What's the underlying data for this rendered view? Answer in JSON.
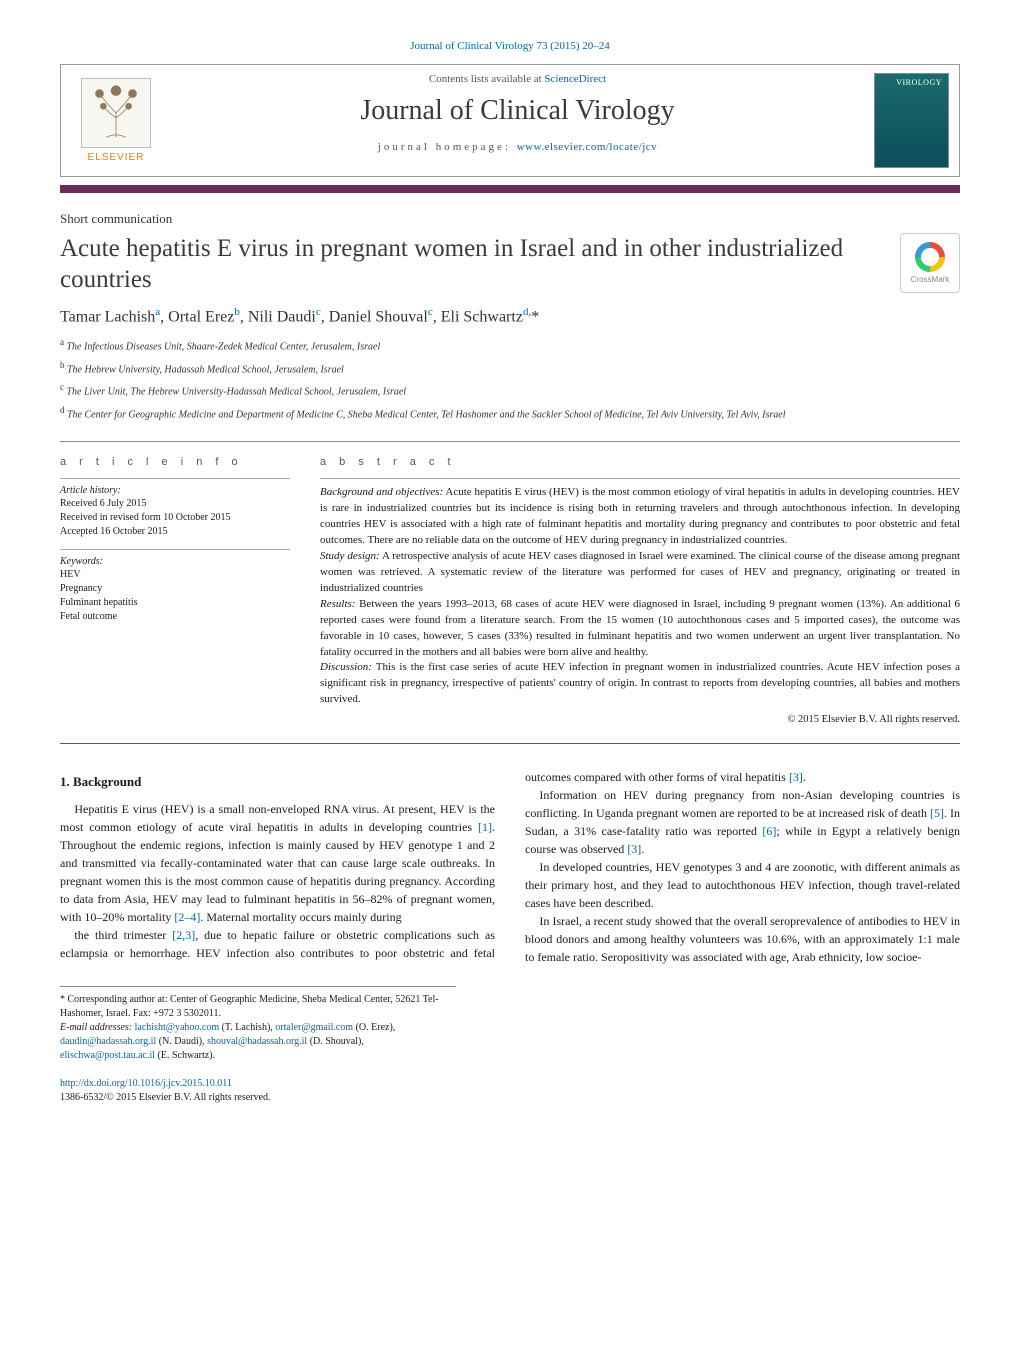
{
  "header": {
    "citation": "Journal of Clinical Virology 73 (2015) 20–24",
    "contents_prefix": "Contents lists available at ",
    "contents_link": "ScienceDirect",
    "journal_title": "Journal of Clinical Virology",
    "homepage_prefix": "journal homepage: ",
    "homepage_link": "www.elsevier.com/locate/jcv",
    "elsevier_label": "ELSEVIER",
    "cover_label": "VIROLOGY",
    "crossmark_label": "CrossMark",
    "colors": {
      "link": "#0066a8",
      "rule": "#6b2d5c",
      "elsevier_orange": "#e87e04",
      "cover_bg_top": "#1a6b6b",
      "cover_bg_bottom": "#0d4d5c"
    }
  },
  "article": {
    "type": "Short communication",
    "title": "Acute hepatitis E virus in pregnant women in Israel and in other industrialized countries",
    "authors_html": "Tamar Lachish<sup>a</sup>, Ortal Erez<sup>b</sup>, Nili Daudi<sup>c</sup>, Daniel Shouval<sup>c</sup>, Eli Schwartz<sup>d,</sup>*",
    "affiliations": [
      "a The Infectious Diseases Unit, Shaare-Zedek Medical Center, Jerusalem, Israel",
      "b The Hebrew University, Hadassah Medical School, Jerusalem, Israel",
      "c The Liver Unit, The Hebrew University-Hadassah Medical School, Jerusalem, Israel",
      "d The Center for Geographic Medicine and Department of Medicine C, Sheba Medical Center, Tel Hashomer and the Sackler School of Medicine, Tel Aviv University, Tel Aviv, Israel"
    ]
  },
  "info": {
    "header": "a r t i c l e   i n f o",
    "history_label": "Article history:",
    "history": [
      "Received 6 July 2015",
      "Received in revised form 10 October 2015",
      "Accepted 16 October 2015"
    ],
    "keywords_label": "Keywords:",
    "keywords": [
      "HEV",
      "Pregnancy",
      "Fulminant hepatitis",
      "Fetal outcome"
    ]
  },
  "abstract": {
    "header": "a b s t r a c t",
    "sections": [
      {
        "label": "Background and objectives:",
        "text": "Acute hepatitis E virus (HEV) is the most common etiology of viral hepatitis in adults in developing countries. HEV is rare in industrialized countries but its incidence is rising both in returning travelers and through autochthonous infection. In developing countries HEV is associated with a high rate of fulminant hepatitis and mortality during pregnancy and contributes to poor obstetric and fetal outcomes. There are no reliable data on the outcome of HEV during pregnancy in industrialized countries."
      },
      {
        "label": "Study design:",
        "text": "A retrospective analysis of acute HEV cases diagnosed in Israel were examined. The clinical course of the disease among pregnant women was retrieved. A systematic review of the literature was performed for cases of HEV and pregnancy, originating or treated in industrialized countries"
      },
      {
        "label": "Results:",
        "text": "Between the years 1993–2013, 68 cases of acute HEV were diagnosed in Israel, including 9 pregnant women (13%). An additional 6 reported cases were found from a literature search. From the 15 women (10 autochthonous cases and 5 imported cases), the outcome was favorable in 10 cases, however, 5 cases (33%) resulted in fulminant hepatitis and two women underwent an urgent liver transplantation. No fatality occurred in the mothers and all babies were born alive and healthy."
      },
      {
        "label": "Discussion:",
        "text": "This is the first case series of acute HEV infection in pregnant women in industrialized countries. Acute HEV infection poses a significant risk in pregnancy, irrespective of patients' country of origin. In contrast to reports from developing countries, all babies and mothers survived."
      }
    ],
    "copyright": "© 2015 Elsevier B.V. All rights reserved."
  },
  "body": {
    "heading": "1. Background",
    "paragraphs": [
      "Hepatitis E virus (HEV) is a small non-enveloped RNA virus. At present, HEV is the most common etiology of acute viral hepatitis in adults in developing countries [1]. Throughout the endemic regions, infection is mainly caused by HEV genotype 1 and 2 and transmitted via fecally-contaminated water that can cause large scale outbreaks. In pregnant women this is the most common cause of hepatitis during pregnancy. According to data from Asia, HEV may lead to fulminant hepatitis in 56–82% of pregnant women, with 10–20% mortality [2–4]. Maternal mortality occurs mainly during",
      "the third trimester [2,3], due to hepatic failure or obstetric complications such as eclampsia or hemorrhage. HEV infection also contributes to poor obstetric and fetal outcomes compared with other forms of viral hepatitis [3].",
      "Information on HEV during pregnancy from non-Asian developing countries is conflicting. In Uganda pregnant women are reported to be at increased risk of death [5]. In Sudan, a 31% case-fatality ratio was reported [6]; while in Egypt a relatively benign course was observed [3].",
      "In developed countries, HEV genotypes 3 and 4 are zoonotic, with different animals as their primary host, and they lead to autochthonous HEV infection, though travel-related cases have been described.",
      "In Israel, a recent study showed that the overall seroprevalence of antibodies to HEV in blood donors and among healthy volunteers was 10.6%, with an approximately 1:1 male to female ratio. Seropositivity was associated with age, Arab ethnicity, low socioe-"
    ],
    "ref_links": [
      "[1]",
      "[2–4]",
      "[2,3]",
      "[3]",
      "[5]",
      "[6]",
      "[3]"
    ]
  },
  "footnote": {
    "corresponding": "* Corresponding author at: Center of Geographic Medicine, Sheba Medical Center, 52621 Tel-Hashomer, Israel. Fax: +972 3 5302011.",
    "email_label": "E-mail addresses:",
    "emails": [
      {
        "addr": "lachisht@yahoo.com",
        "who": "(T. Lachish)"
      },
      {
        "addr": "ortaler@gmail.com",
        "who": "(O. Erez)"
      },
      {
        "addr": "daudin@hadassah.org.il",
        "who": "(N. Daudi)"
      },
      {
        "addr": "shouval@hadassah.org.il",
        "who": "(D. Shouval)"
      },
      {
        "addr": "elischwa@post.tau.ac.il",
        "who": "(E. Schwartz)"
      }
    ]
  },
  "doi": {
    "link": "http://dx.doi.org/10.1016/j.jcv.2015.10.011",
    "issn_line": "1386-6532/© 2015 Elsevier B.V. All rights reserved."
  }
}
